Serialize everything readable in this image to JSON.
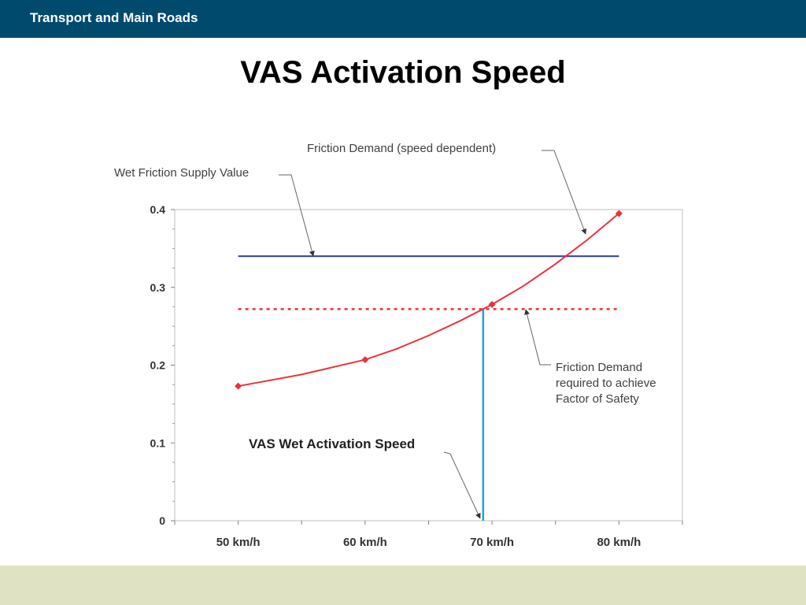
{
  "header": {
    "org_name": "Transport and Main Roads"
  },
  "slide": {
    "title": "VAS Activation Speed"
  },
  "colors": {
    "header": "#004a6e",
    "footer": "#dfe3c3",
    "supply_line": "#2e3d8f",
    "demand_curve": "#e8333a",
    "safety_line": "#e8333a",
    "activation_line": "#1fa3dc",
    "frame": "#bfbfbf",
    "annotation_text": "#404040"
  },
  "chart_data": {
    "type": "line",
    "categories": [
      "50 km/h",
      "60 km/h",
      "70 km/h",
      "80 km/h"
    ],
    "x": [
      50,
      60,
      70,
      80
    ],
    "xlim": [
      45,
      85
    ],
    "ylim": [
      0,
      0.4
    ],
    "yticks": [
      "0",
      "0.1",
      "0.2",
      "0.3",
      "0.4"
    ],
    "grid": false,
    "series": [
      {
        "key": "demand",
        "marker_points": [
          [
            50,
            0.173
          ],
          [
            60,
            0.207
          ],
          [
            70,
            0.278
          ],
          [
            80,
            0.395
          ]
        ],
        "curve": [
          [
            50,
            0.173
          ],
          [
            55,
            0.188
          ],
          [
            60,
            0.207
          ],
          [
            62.5,
            0.221
          ],
          [
            65,
            0.238
          ],
          [
            67.5,
            0.257
          ],
          [
            70,
            0.278
          ],
          [
            72.5,
            0.302
          ],
          [
            75,
            0.33
          ],
          [
            77.5,
            0.361
          ],
          [
            80,
            0.395
          ]
        ]
      },
      {
        "key": "supply",
        "y": 0.34,
        "x_range": [
          50,
          80
        ]
      },
      {
        "key": "safety",
        "y": 0.272,
        "x_range": [
          50,
          80
        ]
      },
      {
        "key": "activation",
        "x": 69.3,
        "y_range": [
          0,
          0.272
        ]
      }
    ],
    "annotations": {
      "demand": "Friction Demand (speed dependent)",
      "supply": "Wet Friction Supply Value",
      "safety": [
        "Friction Demand",
        "required to achieve",
        "Factor of Safety"
      ],
      "activation": "VAS Wet Activation Speed"
    }
  }
}
